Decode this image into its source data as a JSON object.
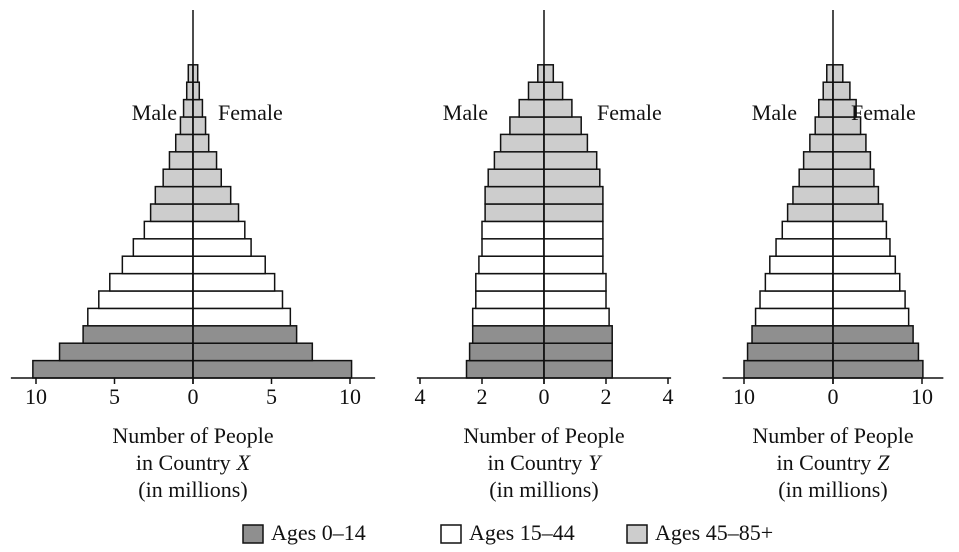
{
  "chart_data": [
    {
      "type": "pyramid",
      "country": "X",
      "xlabel_lines": [
        "Number of People",
        "in Country",
        "(in millions)"
      ],
      "series": [
        {
          "name": "Male",
          "values": [
            10.2,
            8.5,
            7.0,
            6.7,
            6.0,
            5.3,
            4.5,
            3.8,
            3.1,
            2.7,
            2.4,
            1.9,
            1.5,
            1.1,
            0.8,
            0.6,
            0.4,
            0.3
          ]
        },
        {
          "name": "Female",
          "values": [
            10.1,
            7.6,
            6.6,
            6.2,
            5.7,
            5.2,
            4.6,
            3.7,
            3.3,
            2.9,
            2.4,
            1.8,
            1.5,
            1.0,
            0.8,
            0.6,
            0.4,
            0.3
          ]
        }
      ],
      "bar_colors": [
        "#8f8f8f",
        "#8f8f8f",
        "#8f8f8f",
        "#ffffff",
        "#ffffff",
        "#ffffff",
        "#ffffff",
        "#ffffff",
        "#ffffff",
        "#cdcdcd",
        "#cdcdcd",
        "#cdcdcd",
        "#cdcdcd",
        "#cdcdcd",
        "#cdcdcd",
        "#cdcdcd",
        "#cdcdcd",
        "#cdcdcd"
      ],
      "xlim": [
        -11.6,
        11.6
      ],
      "xticks": [
        {
          "value": -10,
          "label": "10"
        },
        {
          "value": -5,
          "label": "5"
        },
        0,
        5,
        10
      ]
    },
    {
      "type": "pyramid",
      "country": "Y",
      "xlabel_lines": [
        "Number of People",
        "in Country",
        "(in millions)"
      ],
      "series": [
        {
          "name": "Male",
          "values": [
            2.5,
            2.4,
            2.3,
            2.3,
            2.2,
            2.2,
            2.1,
            2.0,
            2.0,
            1.9,
            1.9,
            1.8,
            1.6,
            1.4,
            1.1,
            0.8,
            0.5,
            0.2
          ]
        },
        {
          "name": "Female",
          "values": [
            2.2,
            2.2,
            2.2,
            2.1,
            2.0,
            2.0,
            1.9,
            1.9,
            1.9,
            1.9,
            1.9,
            1.8,
            1.7,
            1.4,
            1.2,
            0.9,
            0.6,
            0.3
          ]
        }
      ],
      "bar_colors": [
        "#8f8f8f",
        "#8f8f8f",
        "#8f8f8f",
        "#ffffff",
        "#ffffff",
        "#ffffff",
        "#ffffff",
        "#ffffff",
        "#ffffff",
        "#cdcdcd",
        "#cdcdcd",
        "#cdcdcd",
        "#cdcdcd",
        "#cdcdcd",
        "#cdcdcd",
        "#cdcdcd",
        "#cdcdcd",
        "#cdcdcd"
      ],
      "xlim": [
        -4.1,
        4.1
      ],
      "xticks": [
        {
          "value": -4,
          "label": "4"
        },
        {
          "value": -2,
          "label": "2"
        },
        0,
        2,
        4
      ]
    },
    {
      "type": "pyramid",
      "country": "Z",
      "xlabel_lines": [
        "Number of People",
        "in Country",
        "(in millions)"
      ],
      "series": [
        {
          "name": "Male",
          "values": [
            10.0,
            9.6,
            9.1,
            8.7,
            8.2,
            7.6,
            7.1,
            6.4,
            5.7,
            5.1,
            4.5,
            3.8,
            3.3,
            2.6,
            2.0,
            1.6,
            1.1,
            0.7
          ]
        },
        {
          "name": "Female",
          "values": [
            10.1,
            9.6,
            9.0,
            8.5,
            8.1,
            7.5,
            7.0,
            6.4,
            6.0,
            5.6,
            5.1,
            4.6,
            4.2,
            3.7,
            3.1,
            2.6,
            1.9,
            1.1
          ]
        }
      ],
      "bar_colors": [
        "#8f8f8f",
        "#8f8f8f",
        "#8f8f8f",
        "#ffffff",
        "#ffffff",
        "#ffffff",
        "#ffffff",
        "#ffffff",
        "#ffffff",
        "#cdcdcd",
        "#cdcdcd",
        "#cdcdcd",
        "#cdcdcd",
        "#cdcdcd",
        "#cdcdcd",
        "#cdcdcd",
        "#cdcdcd",
        "#cdcdcd"
      ],
      "xlim": [
        -12.4,
        12.4
      ],
      "xticks": [
        {
          "value": -10,
          "label": "10"
        },
        0,
        10
      ]
    }
  ],
  "legend": [
    {
      "label": "Ages 0–14",
      "color": "#8f8f8f"
    },
    {
      "label": "Ages 15–44",
      "color": "#ffffff"
    },
    {
      "label": "Ages 45–85+",
      "color": "#cdcdcd"
    }
  ]
}
